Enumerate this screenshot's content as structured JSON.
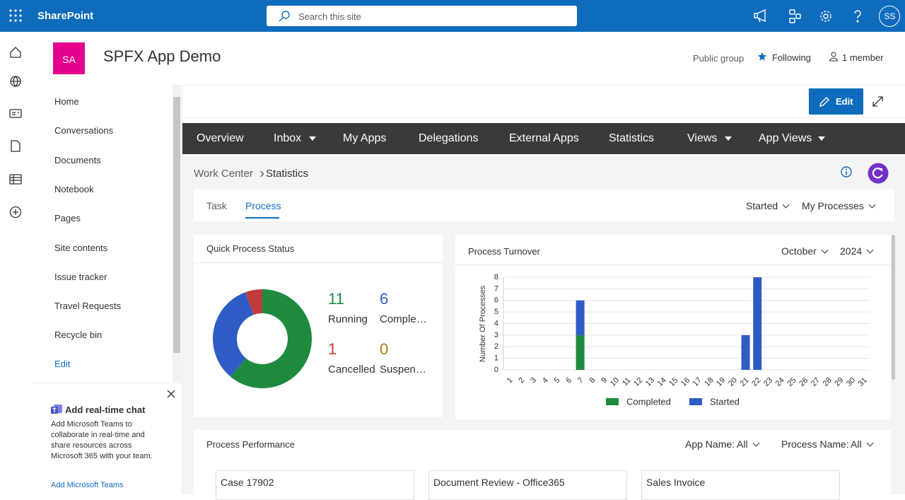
{
  "header": {
    "app": "SharePoint",
    "search_placeholder": "Search this site",
    "avatar": "SS"
  },
  "site": {
    "logo": "SA",
    "title": "SPFX App Demo",
    "privacy": "Public group",
    "following": "Following",
    "members": "1 member"
  },
  "nav": {
    "items": [
      "Home",
      "Conversations",
      "Documents",
      "Notebook",
      "Pages",
      "Site contents",
      "Issue tracker",
      "Travel Requests",
      "Recycle bin"
    ],
    "edit": "Edit"
  },
  "teams_card": {
    "title": "Add real-time chat",
    "text": "Add Microsoft Teams to collaborate in real-time and share resources across Microsoft 365 with your team.",
    "link": "Add Microsoft Teams"
  },
  "toolbar": {
    "edit": "Edit"
  },
  "menu": {
    "items": [
      {
        "label": "Overview",
        "dropdown": false
      },
      {
        "label": "Inbox",
        "dropdown": true
      },
      {
        "label": "My Apps",
        "dropdown": false
      },
      {
        "label": "Delegations",
        "dropdown": false
      },
      {
        "label": "External Apps",
        "dropdown": false
      },
      {
        "label": "Statistics",
        "dropdown": false
      },
      {
        "label": "Views",
        "dropdown": true
      },
      {
        "label": "App Views",
        "dropdown": true
      }
    ]
  },
  "breadcrumb": [
    "Work Center",
    "Statistics"
  ],
  "tabs": {
    "items": [
      "Task",
      "Process"
    ],
    "active": 1,
    "filters": [
      "Started",
      "My Processes"
    ]
  },
  "chart_data": [
    {
      "type": "donut",
      "title": "Quick Process Status",
      "categories": [
        "Running",
        "Completed",
        "Cancelled",
        "Suspended"
      ],
      "values": [
        11,
        6,
        1,
        0
      ],
      "colors": [
        "#1e8a3e",
        "#2f5cc4",
        "#c0393b",
        "#b8741a"
      ]
    },
    {
      "type": "bar",
      "stacked": true,
      "title": "Process Turnover",
      "filters": [
        "October",
        "2024"
      ],
      "y_label": "Number Of Processes",
      "categories": [
        "1",
        "2",
        "3",
        "4",
        "5",
        "6",
        "7",
        "8",
        "9",
        "10",
        "11",
        "12",
        "13",
        "14",
        "15",
        "16",
        "17",
        "18",
        "19",
        "20",
        "21",
        "22",
        "23",
        "24",
        "25",
        "26",
        "27",
        "28",
        "29",
        "30",
        "31"
      ],
      "series": [
        {
          "name": "Completed",
          "color": "#1e8a3e",
          "values": [
            0,
            0,
            0,
            0,
            0,
            0,
            3,
            0,
            0,
            0,
            0,
            0,
            0,
            0,
            0,
            0,
            0,
            0,
            0,
            0,
            0,
            0,
            0,
            0,
            0,
            0,
            0,
            0,
            0,
            0,
            0
          ]
        },
        {
          "name": "Started",
          "color": "#2f5cc4",
          "values": [
            0,
            0,
            0,
            0,
            0,
            0,
            3,
            0,
            0,
            0,
            0,
            0,
            0,
            0,
            0,
            0,
            0,
            0,
            0,
            0,
            3,
            8,
            0,
            0,
            0,
            0,
            0,
            0,
            0,
            0,
            0
          ]
        }
      ],
      "ylim": [
        0,
        8
      ],
      "yticks": [
        0,
        1,
        2,
        3,
        4,
        5,
        6,
        7,
        8
      ],
      "grid": true
    }
  ],
  "performance": {
    "title": "Process Performance",
    "filters": [
      {
        "label": "App Name:",
        "value": "All"
      },
      {
        "label": "Process Name:",
        "value": "All"
      }
    ],
    "cards": [
      "Case 17902",
      "Document Review - Office365",
      "Sales Invoice"
    ]
  }
}
